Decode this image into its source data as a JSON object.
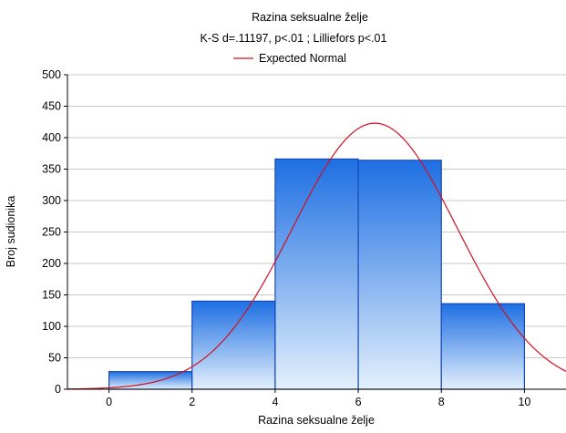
{
  "chart_data": {
    "type": "bar",
    "title": "Razina seksualne želje",
    "subtitle": "K-S d=.11197, p<.01 ; Lilliefors p<.01",
    "xlabel": "Razina seksualne želje",
    "ylabel": "Broj sudionika",
    "xlim": [
      -1,
      11
    ],
    "ylim": [
      0,
      500
    ],
    "x_ticks": [
      0,
      2,
      4,
      6,
      8,
      10
    ],
    "y_ticks": [
      0,
      50,
      100,
      150,
      200,
      250,
      300,
      350,
      400,
      450,
      500
    ],
    "bins": [
      {
        "start": 0,
        "end": 2,
        "value": 28
      },
      {
        "start": 2,
        "end": 4,
        "value": 140
      },
      {
        "start": 4,
        "end": 6,
        "value": 366
      },
      {
        "start": 6,
        "end": 8,
        "value": 364
      },
      {
        "start": 8,
        "end": 10,
        "value": 136
      }
    ],
    "normal_curve": {
      "name": "Expected Normal",
      "mean": 6.4,
      "sd": 1.98,
      "peak": 423
    },
    "legend": {
      "position": "top-center",
      "entries": [
        "Expected Normal"
      ]
    },
    "grid": {
      "horizontal": true,
      "vertical": false
    }
  },
  "colors": {
    "bar_top": "#1E6FE3",
    "bar_bottom": "#E4F0FC",
    "bar_stroke": "#1448B8",
    "curve": "#D0101E",
    "grid": "#C8C8C8",
    "axis": "#000000"
  }
}
